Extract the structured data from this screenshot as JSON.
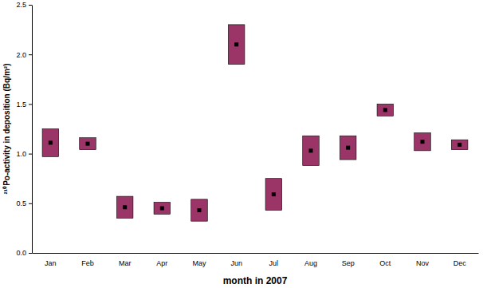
{
  "chart_data": {
    "type": "errorbar",
    "x_label": "month in 2007",
    "y_label": "²¹⁰Po-activity in deposition (Bq/m²)",
    "categories": [
      "Jan",
      "Feb",
      "Mar",
      "Apr",
      "May",
      "Jun",
      "Jul",
      "Aug",
      "Sep",
      "Oct",
      "Nov",
      "Dec"
    ],
    "values": [
      1.11,
      1.1,
      0.46,
      0.45,
      0.43,
      2.1,
      0.59,
      1.03,
      1.06,
      1.44,
      1.12,
      1.09
    ],
    "errors": [
      0.14,
      0.06,
      0.11,
      0.06,
      0.11,
      0.2,
      0.16,
      0.15,
      0.12,
      0.06,
      0.09,
      0.05
    ],
    "color": "#9b3467",
    "marker": "square",
    "ylim": [
      0,
      2.5
    ],
    "yticks": [
      {
        "value": 0,
        "label": "0.0"
      },
      {
        "value": 0.5,
        "label": "0.5"
      },
      {
        "value": 1,
        "label": "1.0"
      },
      {
        "value": 1.5,
        "label": "1.5"
      },
      {
        "value": 2,
        "label": "2.0"
      },
      {
        "value": 2.5,
        "label": "2.5"
      }
    ],
    "grid": false
  }
}
